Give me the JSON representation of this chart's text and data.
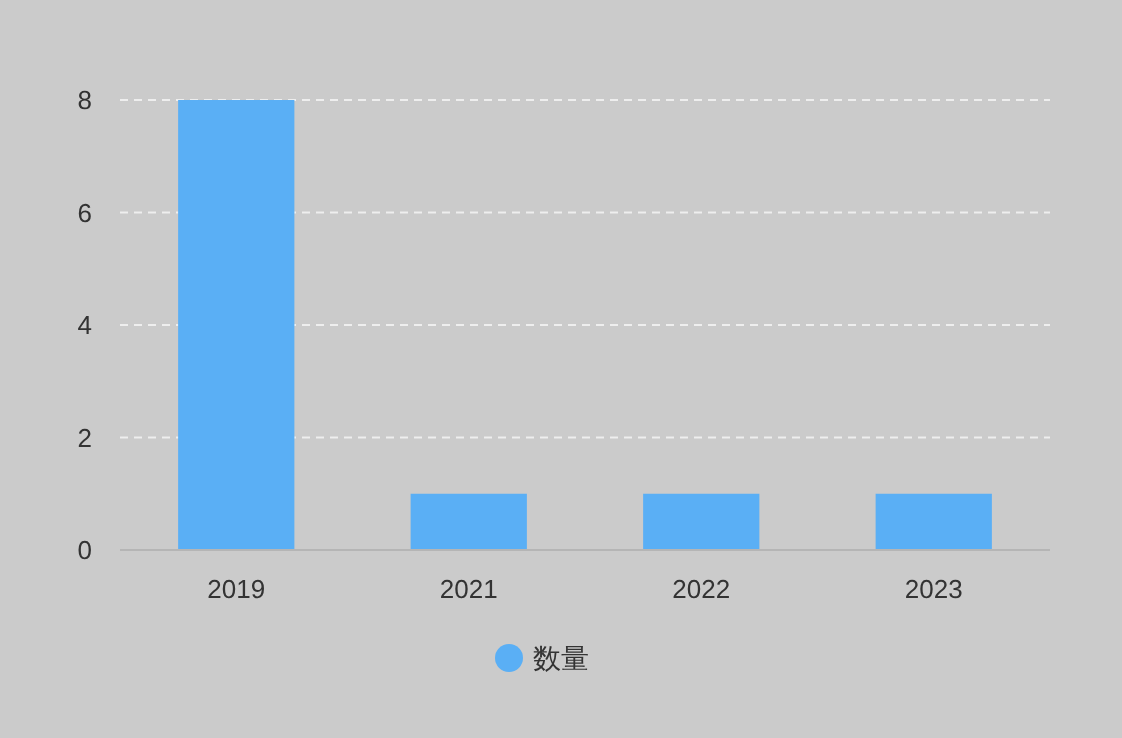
{
  "chart_data": {
    "type": "bar",
    "categories": [
      "2019",
      "2021",
      "2022",
      "2023"
    ],
    "series": [
      {
        "name": "数量",
        "color": "#5aaff5",
        "values": [
          8,
          1,
          1,
          1
        ]
      }
    ],
    "ylim": [
      0,
      8
    ],
    "yticks": [
      0,
      2,
      4,
      6,
      8
    ],
    "grid": "y",
    "legend": "bottom"
  }
}
